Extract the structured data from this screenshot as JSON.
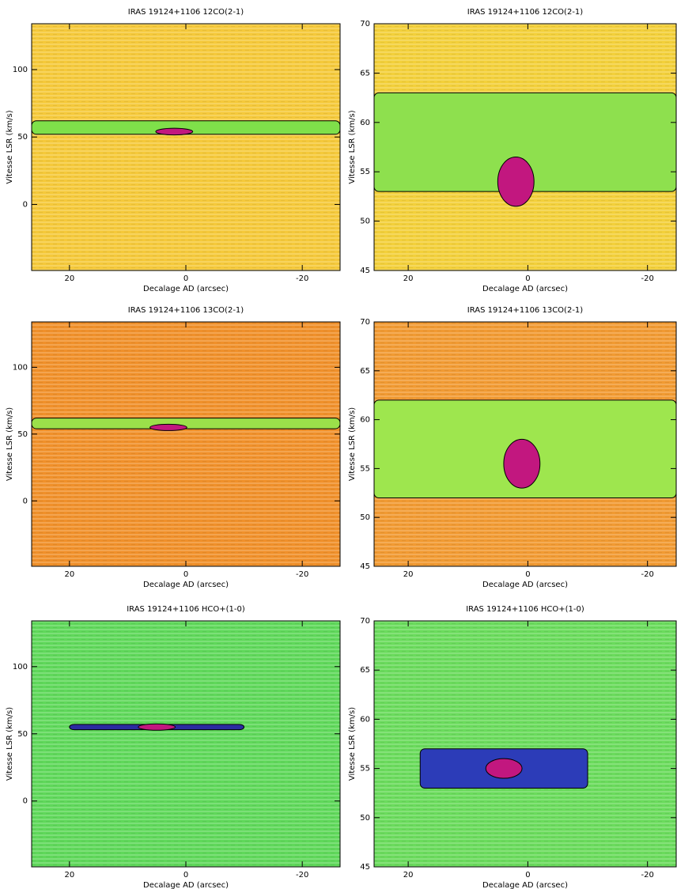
{
  "chart_data": [
    {
      "type": "heatmap",
      "title": "IRAS 19124+1106 12CO(2-1)",
      "x_label": "Decalage AD (arcsec)",
      "y_label": "Vitesse LSR (km/s)",
      "xlim": [
        26.5,
        -26.5
      ],
      "ylim": [
        -49,
        134
      ],
      "xticks": [
        20,
        0,
        -20
      ],
      "yticks": [
        0,
        50,
        100
      ],
      "color": "#f5c93a",
      "band_x": [
        26.5,
        -26.5
      ],
      "band_y": [
        52,
        62
      ],
      "band_color": "#7fe04a",
      "peak": [
        2,
        54
      ],
      "peak_color": "#c2177f"
    },
    {
      "type": "heatmap",
      "title": "IRAS 19124+1106 12CO(2-1)",
      "x_label": "Decalage AD (arcsec)",
      "y_label": "Vitesse LSR (km/s)",
      "xlim": [
        25.7,
        -24.8
      ],
      "ylim": [
        45,
        70
      ],
      "xticks": [
        20,
        0,
        -20
      ],
      "yticks": [
        45,
        50,
        55,
        60,
        65,
        70
      ],
      "color": "#f3d03a",
      "band_x": [
        25.7,
        -24.8
      ],
      "band_y": [
        53,
        63
      ],
      "band_color": "#8ee04e",
      "peak": [
        2,
        54
      ],
      "peak_color": "#c2177f"
    },
    {
      "type": "heatmap",
      "title": "IRAS 19124+1106 13CO(2-1)",
      "x_label": "Decalage AD (arcsec)",
      "y_label": "Vitesse LSR (km/s)",
      "xlim": [
        26.5,
        -26.5
      ],
      "ylim": [
        -49,
        134
      ],
      "xticks": [
        20,
        0,
        -20
      ],
      "yticks": [
        0,
        50,
        100
      ],
      "color": "#f0902a",
      "band_x": [
        26.5,
        -26.5
      ],
      "band_y": [
        54,
        62
      ],
      "band_color": "#9be04a",
      "peak": [
        3,
        55
      ],
      "peak_color": "#c2177f"
    },
    {
      "type": "heatmap",
      "title": "IRAS 19124+1106 13CO(2-1)",
      "x_label": "Decalage AD (arcsec)",
      "y_label": "Vitesse LSR (km/s)",
      "xlim": [
        25.7,
        -24.8
      ],
      "ylim": [
        45,
        70
      ],
      "xticks": [
        20,
        0,
        -20
      ],
      "yticks": [
        45,
        50,
        55,
        60,
        65,
        70
      ],
      "color": "#f19a32",
      "band_x": [
        25.7,
        -24.8
      ],
      "band_y": [
        52,
        62
      ],
      "band_color": "#9ee64e",
      "peak": [
        1,
        55.5
      ],
      "peak_color": "#c2177f"
    },
    {
      "type": "heatmap",
      "title": "IRAS 19124+1106 HCO+(1-0)",
      "x_label": "Decalage AD (arcsec)",
      "y_label": "Vitesse LSR (km/s)",
      "xlim": [
        26.5,
        -26.5
      ],
      "ylim": [
        -49,
        134
      ],
      "xticks": [
        20,
        0,
        -20
      ],
      "yticks": [
        0,
        50,
        100
      ],
      "color": "#5fd85a",
      "band_x": [
        20,
        -10
      ],
      "band_y": [
        53,
        57
      ],
      "band_color": "#2b2aa0",
      "peak": [
        5,
        55
      ],
      "peak_color": "#c2177f"
    },
    {
      "type": "heatmap",
      "title": "IRAS 19124+1106 HCO+(1-0)",
      "x_label": "Decalage AD (arcsec)",
      "y_label": "Vitesse LSR (km/s)",
      "xlim": [
        25.7,
        -24.8
      ],
      "ylim": [
        45,
        70
      ],
      "xticks": [
        20,
        0,
        -20
      ],
      "yticks": [
        45,
        50,
        55,
        60,
        65,
        70
      ],
      "color": "#6adb5c",
      "band_x": [
        18,
        -10
      ],
      "band_y": [
        53,
        57
      ],
      "band_color": "#2c3cb8",
      "peak": [
        4,
        55
      ],
      "peak_color": "#c2177f"
    }
  ]
}
